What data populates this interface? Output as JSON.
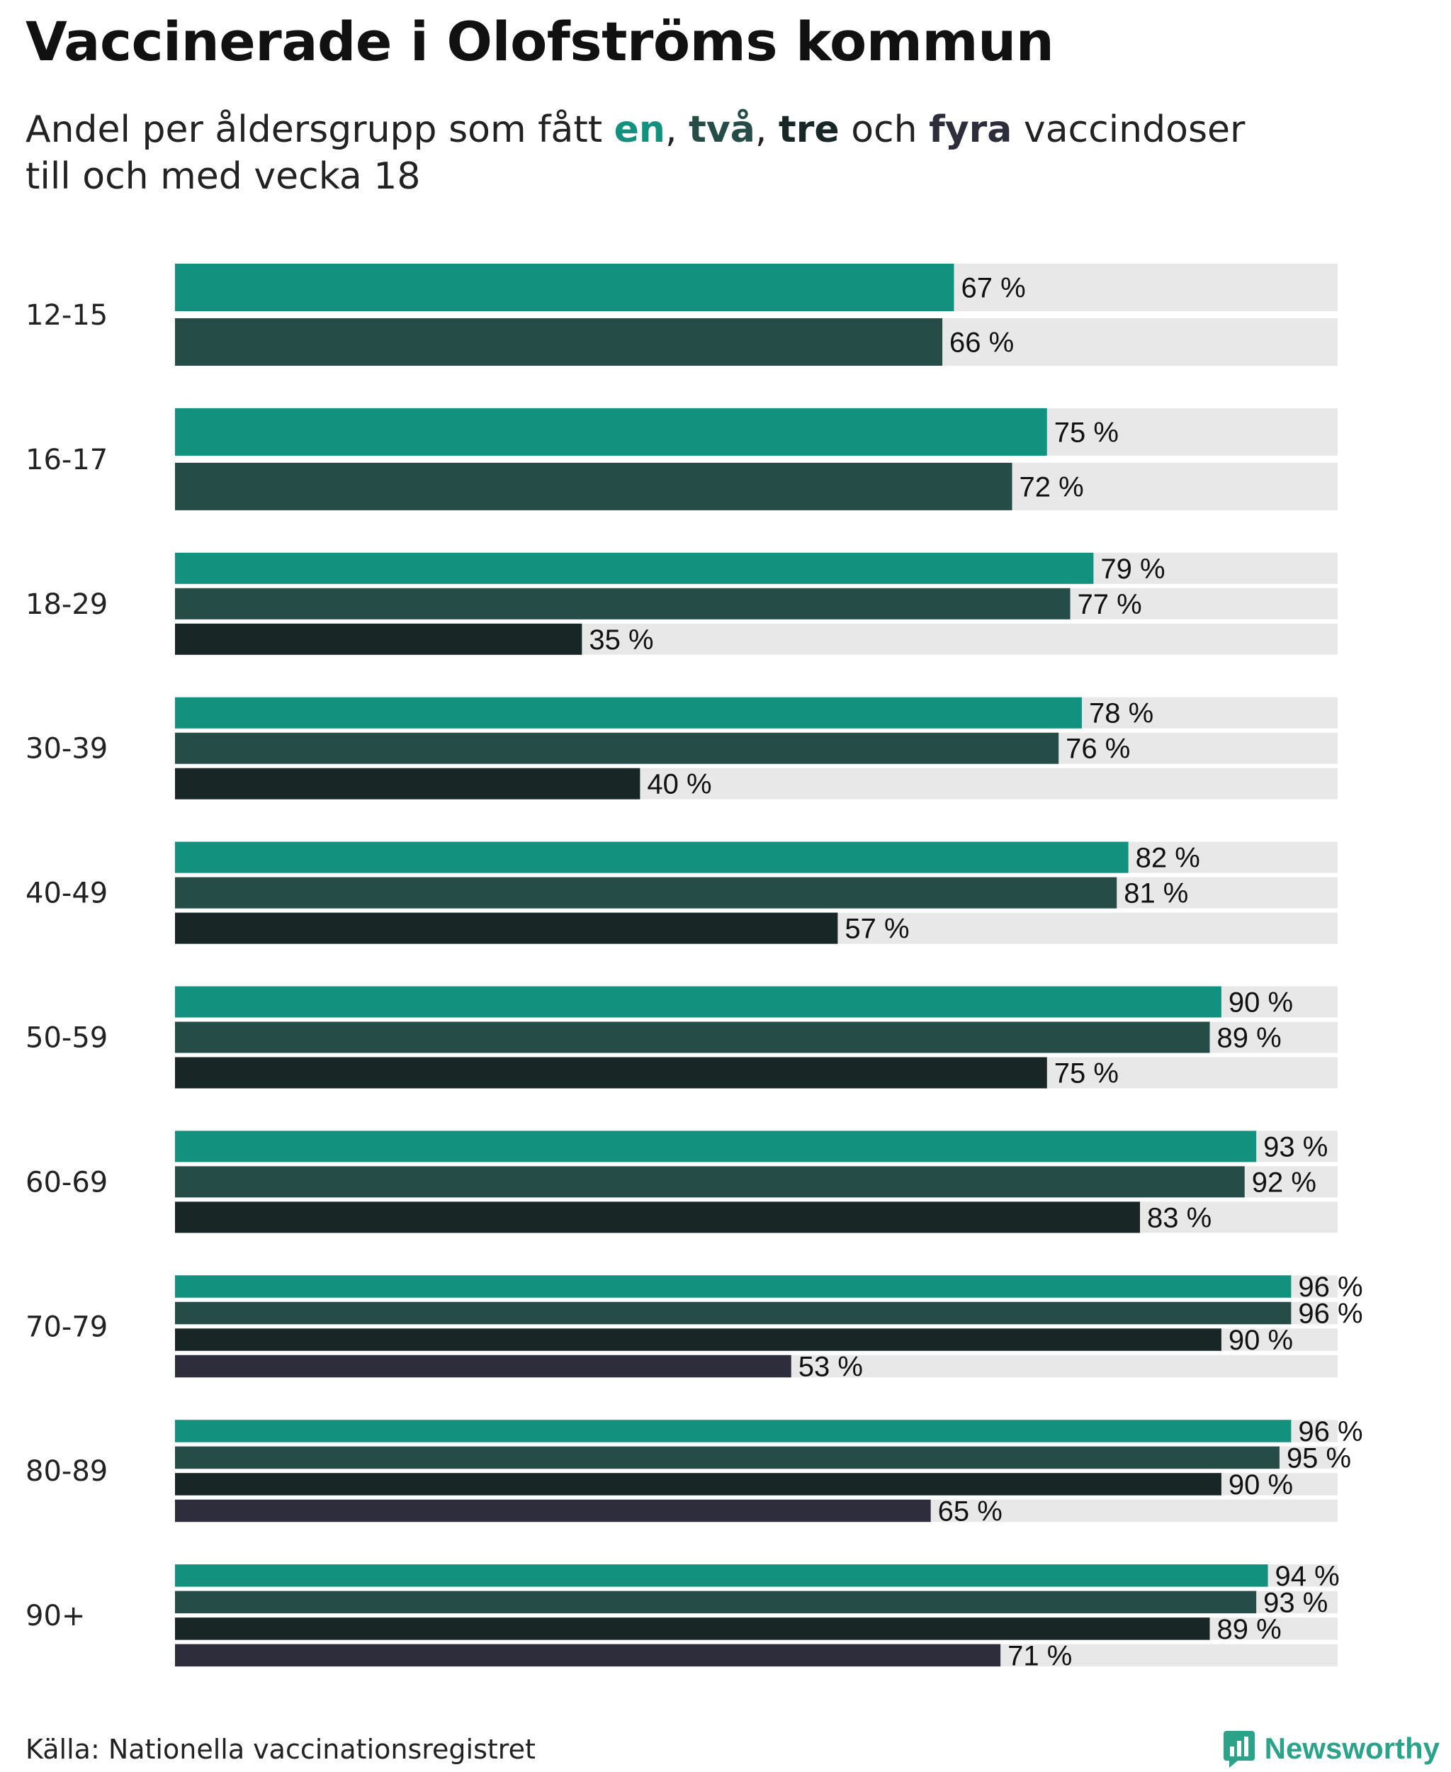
{
  "title": "Vaccinerade i Olofströms kommun",
  "subtitle": {
    "prefix": "Andel per åldersgrupp som fått ",
    "dose1": "en",
    "sep1": ", ",
    "dose2": "två",
    "sep2": ", ",
    "dose3": "tre",
    "mid": " och ",
    "dose4": "fyra",
    "suffix": " vaccindoser",
    "line2": "till och med vecka 18"
  },
  "colors": {
    "dose1": "#13917f",
    "dose2": "#264c47",
    "dose3": "#182625",
    "dose4": "#2e2d3b",
    "track": "#e8e8e8"
  },
  "source": "Källa: Nationella vaccinationsregistret",
  "brand": {
    "name": "Newsworthy",
    "icon": "newsworthy-logo-icon"
  },
  "chart_data": {
    "type": "bar",
    "orientation": "horizontal",
    "title": "Vaccinerade i Olofströms kommun",
    "value_suffix": " %",
    "xlim": [
      0,
      100
    ],
    "categories": [
      "12-15",
      "16-17",
      "18-29",
      "30-39",
      "40-49",
      "50-59",
      "60-69",
      "70-79",
      "80-89",
      "90+"
    ],
    "series": [
      {
        "name": "en",
        "values": [
          67,
          75,
          79,
          78,
          82,
          90,
          93,
          96,
          96,
          94
        ]
      },
      {
        "name": "två",
        "values": [
          66,
          72,
          77,
          76,
          81,
          89,
          92,
          96,
          95,
          93
        ]
      },
      {
        "name": "tre",
        "values": [
          null,
          null,
          35,
          40,
          57,
          75,
          83,
          90,
          90,
          89
        ]
      },
      {
        "name": "fyra",
        "values": [
          null,
          null,
          null,
          null,
          null,
          null,
          null,
          53,
          65,
          71
        ]
      }
    ]
  }
}
